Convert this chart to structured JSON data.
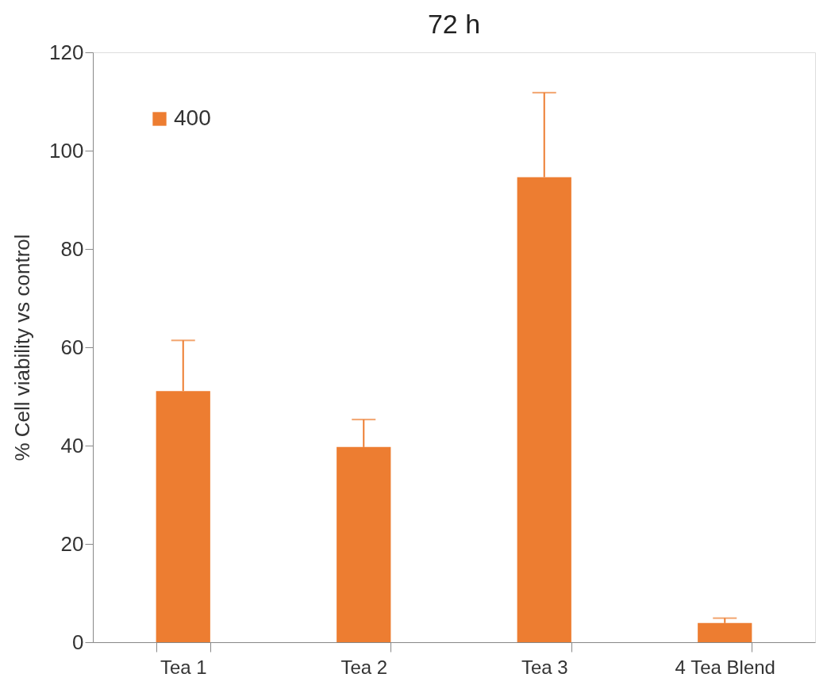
{
  "chart_data": {
    "type": "bar",
    "title": "72 h",
    "ylabel": "% Cell viability  vs control",
    "categories": [
      "Tea 1",
      "Tea 2",
      "Tea 3",
      "4 Tea Blend"
    ],
    "series": [
      {
        "name": "400",
        "color": "#ed7d31",
        "values": [
          51.1,
          39.7,
          94.6,
          3.9
        ],
        "errors": [
          [
            51.1,
            61.4
          ],
          [
            39.7,
            45.3
          ],
          [
            94.6,
            111.8
          ],
          [
            3.9,
            4.9
          ]
        ]
      }
    ],
    "ylim": [
      0,
      120
    ],
    "yticks": [
      0,
      20,
      40,
      60,
      80,
      100,
      120
    ],
    "grid": false,
    "legend": "top left"
  }
}
